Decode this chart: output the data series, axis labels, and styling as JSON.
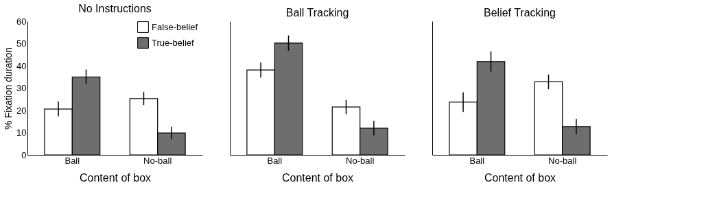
{
  "chart_data": [
    {
      "type": "bar",
      "title": "No Instructions",
      "xlabel": "Content of box",
      "ylabel": "% Fixation duration",
      "categories": [
        "Ball",
        "No-ball"
      ],
      "ylim": [
        0,
        60
      ],
      "yticks": [
        0,
        10,
        20,
        30,
        40,
        50,
        60
      ],
      "grid": false,
      "legend": "top right",
      "series": [
        {
          "name": "False-belief",
          "color": "#ffffff",
          "values": [
            20.6,
            25.3
          ],
          "errors": [
            3.3,
            2.9
          ]
        },
        {
          "name": "True-belief",
          "color": "#6e6e6e",
          "values": [
            35.0,
            9.8
          ],
          "errors": [
            3.3,
            2.8
          ]
        }
      ]
    },
    {
      "type": "bar",
      "title": "Ball Tracking",
      "xlabel": "Content of box",
      "categories": [
        "Ball",
        "No-ball"
      ],
      "ylim": [
        0,
        60
      ],
      "grid": false,
      "tick_labels": "x",
      "legend": false,
      "series": [
        {
          "color": "#ffffff",
          "values": [
            38.1,
            21.5
          ],
          "errors": [
            3.4,
            3.2
          ]
        },
        {
          "color": "#6e6e6e",
          "values": [
            50.2,
            12.0
          ],
          "errors": [
            3.4,
            3.2
          ]
        }
      ]
    },
    {
      "type": "bar",
      "title": "Belief Tracking",
      "xlabel": "Content of box",
      "categories": [
        "Ball",
        "No-ball"
      ],
      "ylim": [
        0,
        60
      ],
      "grid": false,
      "tick_labels": "x",
      "legend": false,
      "series": [
        {
          "color": "#ffffff",
          "values": [
            23.7,
            32.8
          ],
          "errors": [
            4.4,
            3.3
          ]
        },
        {
          "color": "#6e6e6e",
          "values": [
            41.9,
            12.7
          ],
          "errors": [
            4.5,
            3.4
          ]
        }
      ]
    }
  ]
}
